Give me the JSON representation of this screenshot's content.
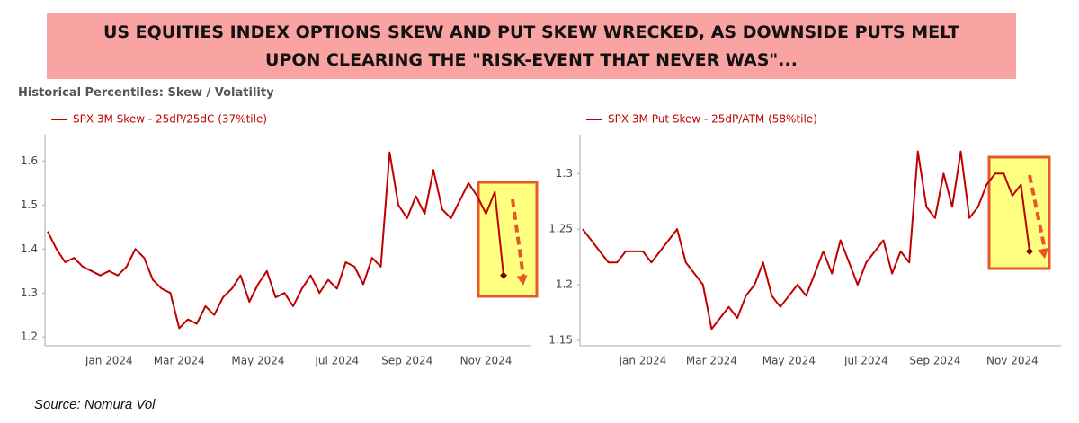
{
  "header": {
    "title": "US EQUITIES INDEX OPTIONS SKEW AND PUT SKEW WRECKED, AS DOWNSIDE PUTS MELT UPON CLEARING THE \"RISK-EVENT THAT NEVER WAS\"...",
    "subtitle": "Historical Percentiles: Skew / Volatility"
  },
  "source": "Source: Nomura Vol",
  "chart_data": [
    {
      "type": "line",
      "categories": [
        null,
        null,
        null,
        null,
        null,
        null,
        null,
        "Jan 2024",
        null,
        null,
        null,
        null,
        null,
        null,
        null,
        "Mar 2024",
        null,
        null,
        null,
        null,
        null,
        null,
        null,
        null,
        "May 2024",
        null,
        null,
        null,
        null,
        null,
        null,
        null,
        null,
        "Jul 2024",
        null,
        null,
        null,
        null,
        null,
        null,
        null,
        "Sep 2024",
        null,
        null,
        null,
        null,
        null,
        null,
        null,
        null,
        "Nov 2024",
        null,
        null
      ],
      "series": [
        {
          "name": "SPX 3M Skew - 25dP/25dC (37%tile)",
          "color": "#c00000",
          "values": [
            1.44,
            1.4,
            1.37,
            1.38,
            1.36,
            1.35,
            1.34,
            1.35,
            1.34,
            1.36,
            1.4,
            1.38,
            1.33,
            1.31,
            1.3,
            1.22,
            1.24,
            1.23,
            1.27,
            1.25,
            1.29,
            1.31,
            1.34,
            1.28,
            1.32,
            1.35,
            1.29,
            1.3,
            1.27,
            1.31,
            1.34,
            1.3,
            1.33,
            1.31,
            1.37,
            1.36,
            1.32,
            1.38,
            1.36,
            1.62,
            1.5,
            1.47,
            1.52,
            1.48,
            1.58,
            1.49,
            1.47,
            1.51,
            1.55,
            1.52,
            1.48,
            1.53,
            1.34
          ]
        }
      ],
      "ylim": [
        1.18,
        1.66
      ],
      "yticks": [
        1.2,
        1.3,
        1.4,
        1.5,
        1.6
      ]
    },
    {
      "type": "line",
      "categories": [
        null,
        null,
        null,
        null,
        null,
        null,
        null,
        "Jan 2024",
        null,
        null,
        null,
        null,
        null,
        null,
        null,
        "Mar 2024",
        null,
        null,
        null,
        null,
        null,
        null,
        null,
        null,
        "May 2024",
        null,
        null,
        null,
        null,
        null,
        null,
        null,
        null,
        "Jul 2024",
        null,
        null,
        null,
        null,
        null,
        null,
        null,
        "Sep 2024",
        null,
        null,
        null,
        null,
        null,
        null,
        null,
        null,
        "Nov 2024",
        null,
        null
      ],
      "series": [
        {
          "name": "SPX 3M Put Skew - 25dP/ATM (58%tile)",
          "color": "#c00000",
          "values": [
            1.25,
            1.24,
            1.23,
            1.22,
            1.22,
            1.23,
            1.23,
            1.23,
            1.22,
            1.23,
            1.24,
            1.25,
            1.22,
            1.21,
            1.2,
            1.16,
            1.17,
            1.18,
            1.17,
            1.19,
            1.2,
            1.22,
            1.19,
            1.18,
            1.19,
            1.2,
            1.19,
            1.21,
            1.23,
            1.21,
            1.24,
            1.22,
            1.2,
            1.22,
            1.23,
            1.24,
            1.21,
            1.23,
            1.22,
            1.32,
            1.27,
            1.26,
            1.3,
            1.27,
            1.32,
            1.26,
            1.27,
            1.29,
            1.3,
            1.3,
            1.28,
            1.29,
            1.23
          ]
        }
      ],
      "ylim": [
        1.145,
        1.335
      ],
      "yticks": [
        1.15,
        1.2,
        1.25,
        1.3
      ]
    }
  ]
}
